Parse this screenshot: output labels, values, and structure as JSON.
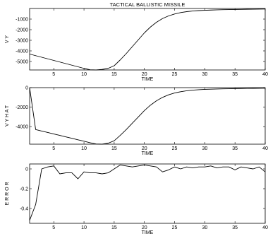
{
  "figure_title": "TACTICAL BALLISTIC MISSILE",
  "chart_data": [
    {
      "type": "line",
      "title": "TACTICAL BALLISTIC MISSILE",
      "xlabel": "TIME",
      "ylabel": "V Y",
      "xlim": [
        1,
        40
      ],
      "ylim": [
        -5800,
        0
      ],
      "xticks": [
        5,
        10,
        15,
        20,
        25,
        30,
        35,
        40
      ],
      "yticks": [
        -1000,
        -2000,
        -3000,
        -4000,
        -5000
      ],
      "grid": false,
      "series": [
        {
          "x": [
            1,
            2,
            3,
            4,
            5,
            6,
            7,
            8,
            9,
            10,
            11,
            12,
            13,
            14,
            15,
            16,
            17,
            18,
            19,
            20,
            21,
            22,
            23,
            24,
            25,
            26,
            27,
            28,
            29,
            30,
            31,
            32,
            33,
            34,
            35,
            36,
            37,
            38,
            39,
            40
          ],
          "y": [
            -4300,
            -4450,
            -4600,
            -4750,
            -4900,
            -5050,
            -5200,
            -5350,
            -5500,
            -5650,
            -5780,
            -5800,
            -5750,
            -5650,
            -5400,
            -4850,
            -4250,
            -3600,
            -2950,
            -2300,
            -1750,
            -1300,
            -950,
            -700,
            -520,
            -390,
            -300,
            -240,
            -200,
            -170,
            -150,
            -130,
            -115,
            -105,
            -95,
            -85,
            -75,
            -68,
            -62,
            -55
          ]
        }
      ]
    },
    {
      "type": "line",
      "title": "",
      "xlabel": "TIME",
      "ylabel": "V Y  H A T",
      "xlim": [
        1,
        40
      ],
      "ylim": [
        -5800,
        0
      ],
      "xticks": [
        5,
        10,
        15,
        20,
        25,
        30,
        35,
        40
      ],
      "yticks": [
        0,
        -2000,
        -4000
      ],
      "grid": false,
      "series": [
        {
          "x": [
            1,
            2,
            3,
            4,
            5,
            6,
            7,
            8,
            9,
            10,
            11,
            12,
            13,
            14,
            15,
            16,
            17,
            18,
            19,
            20,
            21,
            22,
            23,
            24,
            25,
            26,
            27,
            28,
            29,
            30,
            31,
            32,
            33,
            34,
            35,
            36,
            37,
            38,
            39,
            40
          ],
          "y": [
            0,
            -4300,
            -4450,
            -4600,
            -4750,
            -4900,
            -5050,
            -5200,
            -5350,
            -5500,
            -5650,
            -5780,
            -5800,
            -5700,
            -5450,
            -4900,
            -4300,
            -3650,
            -3000,
            -2350,
            -1800,
            -1350,
            -1000,
            -740,
            -550,
            -420,
            -320,
            -255,
            -210,
            -180,
            -160,
            -140,
            -125,
            -112,
            -100,
            -90,
            -80,
            -72,
            -65,
            -58
          ]
        }
      ]
    },
    {
      "type": "line",
      "title": "",
      "xlabel": "TIME",
      "ylabel": "E R R O R",
      "xlim": [
        1,
        40
      ],
      "ylim": [
        -0.55,
        0.05
      ],
      "xticks": [
        5,
        10,
        15,
        20,
        25,
        30,
        35,
        40
      ],
      "yticks": [
        0,
        -0.2,
        -0.4
      ],
      "grid": false,
      "series": [
        {
          "x": [
            1,
            2,
            3,
            4,
            5,
            6,
            7,
            8,
            9,
            10,
            11,
            12,
            13,
            14,
            15,
            16,
            17,
            18,
            19,
            20,
            21,
            22,
            23,
            24,
            25,
            26,
            27,
            28,
            29,
            30,
            31,
            32,
            33,
            34,
            35,
            36,
            37,
            38,
            39,
            40
          ],
          "y": [
            -0.52,
            -0.36,
            0.0,
            0.02,
            0.03,
            -0.05,
            -0.04,
            -0.04,
            -0.1,
            -0.03,
            -0.04,
            -0.04,
            -0.05,
            -0.04,
            0.0,
            0.04,
            0.03,
            0.02,
            0.03,
            0.04,
            0.03,
            0.02,
            -0.03,
            -0.01,
            0.02,
            0.0,
            0.02,
            0.01,
            0.02,
            0.02,
            0.03,
            0.01,
            0.02,
            0.02,
            -0.01,
            0.02,
            0.01,
            0.0,
            0.02,
            -0.03
          ]
        }
      ]
    }
  ]
}
